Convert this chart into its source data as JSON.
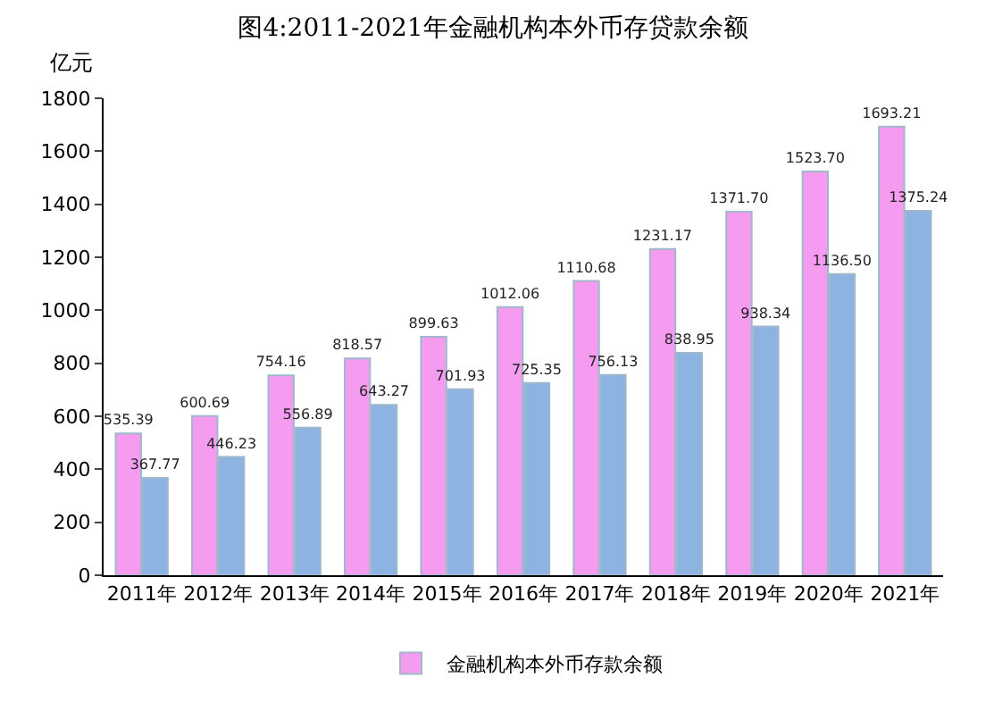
{
  "chart_data": {
    "type": "bar",
    "title": "图4:2011-2021年金融机构本外币存贷款余额",
    "ylabel": "亿元",
    "categories": [
      "2011年",
      "2012年",
      "2013年",
      "2014年",
      "2015年",
      "2016年",
      "2017年",
      "2018年",
      "2019年",
      "2020年",
      "2021年"
    ],
    "series": [
      {
        "name": "金融机构本外币存款余额",
        "color": "#f59cf0",
        "values": [
          535.39,
          600.69,
          754.16,
          818.57,
          899.63,
          1012.06,
          1110.68,
          1231.17,
          1371.7,
          1523.7,
          1693.21
        ],
        "value_labels": [
          "535.39",
          "600.69",
          "754.16",
          "818.57",
          "899.63",
          "1012.06",
          "1110.68",
          "1231.17",
          "1371.70",
          "1523.70",
          "1693.21"
        ]
      },
      {
        "color": "#8db3e2",
        "values": [
          367.77,
          446.23,
          556.89,
          643.27,
          701.93,
          725.35,
          756.13,
          838.95,
          938.34,
          1136.5,
          1375.24
        ],
        "value_labels": [
          "367.77",
          "446.23",
          "556.89",
          "643.27",
          "701.93",
          "725.35",
          "756.13",
          "838.95",
          "938.34",
          "1136.50",
          "1375.24"
        ]
      }
    ],
    "ylim": [
      0,
      1800
    ],
    "yticks": [
      0,
      200,
      400,
      600,
      800,
      1000,
      1200,
      1400,
      1600,
      1800
    ],
    "grid": false,
    "legend": "bottom"
  }
}
